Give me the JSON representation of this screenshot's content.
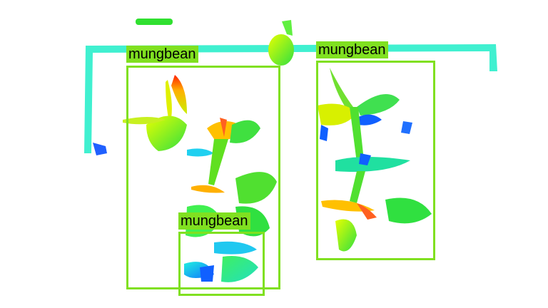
{
  "image": {
    "description_colors": {
      "background": "#ffffff",
      "box_color": "#80e020",
      "label_bg": "#80e020",
      "label_text": "#000000"
    }
  },
  "detections": [
    {
      "label": "mungbean"
    },
    {
      "label": "mungbean"
    },
    {
      "label": "mungbean"
    }
  ]
}
